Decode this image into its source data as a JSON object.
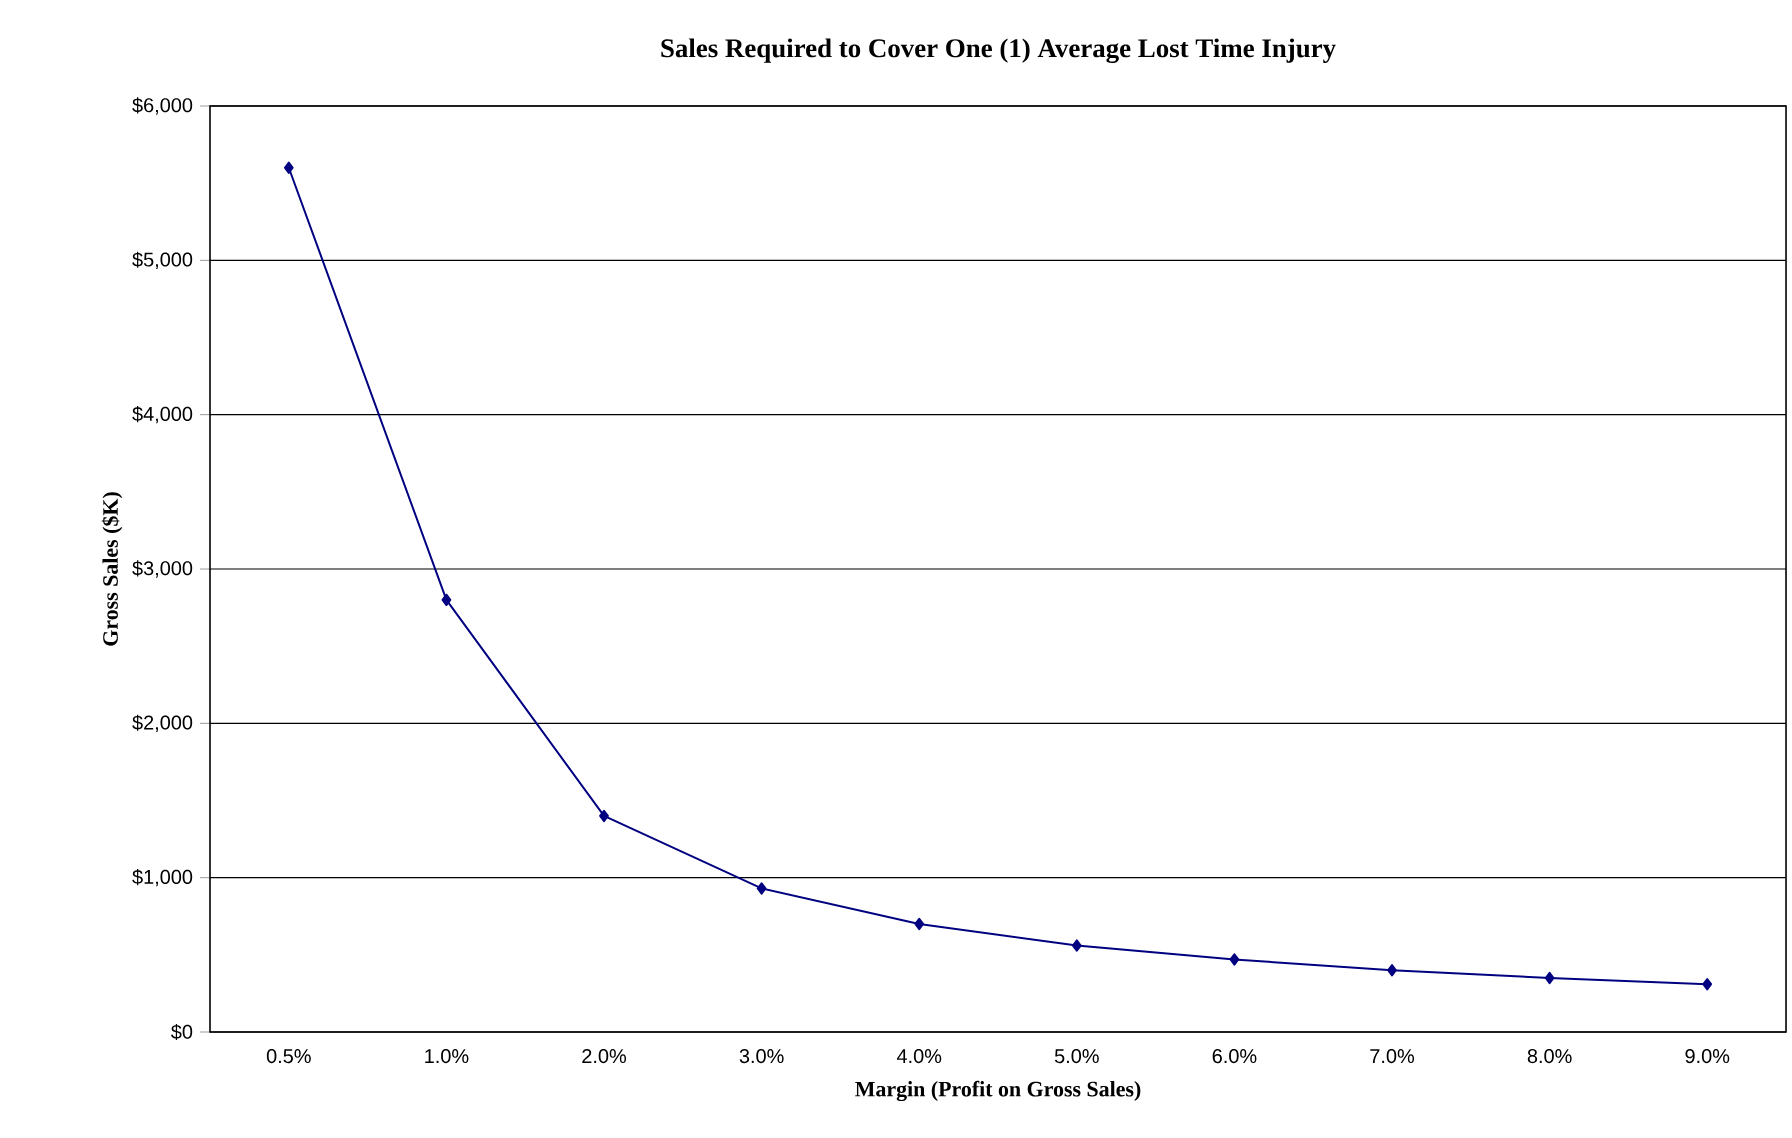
{
  "chart_data": {
    "type": "line",
    "title": "Sales Required to Cover One (1) Average Lost Time Injury",
    "xlabel": "Margin (Profit on Gross Sales)",
    "ylabel": "Gross Sales ($K)",
    "categories": [
      "0.5%",
      "1.0%",
      "2.0%",
      "3.0%",
      "4.0%",
      "5.0%",
      "6.0%",
      "7.0%",
      "8.0%",
      "9.0%"
    ],
    "series": [
      {
        "color": "#000080",
        "values": [
          5600,
          2800,
          1400,
          930,
          700,
          560,
          470,
          400,
          350,
          310
        ]
      }
    ],
    "ylim": [
      0,
      6000
    ],
    "yticks": [
      {
        "value": 0,
        "label": "$0"
      },
      {
        "value": 1000,
        "label": "$1,000"
      },
      {
        "value": 2000,
        "label": "$2,000"
      },
      {
        "value": 3000,
        "label": "$3,000"
      },
      {
        "value": 4000,
        "label": "$4,000"
      },
      {
        "value": 5000,
        "label": "$5,000"
      },
      {
        "value": 6000,
        "label": "$6,000"
      }
    ],
    "grid": "y",
    "marker": "diamond",
    "line_style": "solid",
    "legend": false
  }
}
